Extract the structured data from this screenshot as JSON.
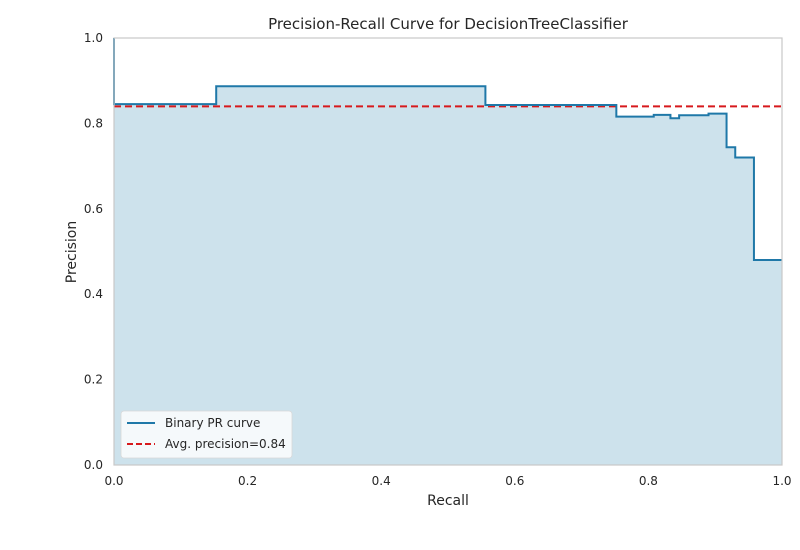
{
  "chart_data": {
    "type": "line",
    "title": "Precision-Recall Curve for DecisionTreeClassifier",
    "xlabel": "Recall",
    "ylabel": "Precision",
    "xlim": [
      0.0,
      1.0
    ],
    "ylim": [
      0.0,
      1.0
    ],
    "xticks": [
      "0.0",
      "0.2",
      "0.4",
      "0.6",
      "0.8",
      "1.0"
    ],
    "yticks": [
      "0.0",
      "0.2",
      "0.4",
      "0.6",
      "0.8",
      "1.0"
    ],
    "grid": false,
    "legend_position": "lower-left",
    "series": [
      {
        "name": "Binary PR curve",
        "style": "step-post",
        "color": "#1f78a8",
        "fill_color": "#cde2ec",
        "points": [
          [
            0.0,
            1.0
          ],
          [
            0.0,
            0.845
          ],
          [
            0.153,
            0.845
          ],
          [
            0.153,
            0.887
          ],
          [
            0.556,
            0.887
          ],
          [
            0.556,
            0.843
          ],
          [
            0.752,
            0.843
          ],
          [
            0.752,
            0.816
          ],
          [
            0.808,
            0.816
          ],
          [
            0.808,
            0.82
          ],
          [
            0.833,
            0.82
          ],
          [
            0.833,
            0.812
          ],
          [
            0.846,
            0.812
          ],
          [
            0.846,
            0.819
          ],
          [
            0.89,
            0.819
          ],
          [
            0.89,
            0.823
          ],
          [
            0.917,
            0.823
          ],
          [
            0.917,
            0.744
          ],
          [
            0.93,
            0.744
          ],
          [
            0.93,
            0.72
          ],
          [
            0.958,
            0.72
          ],
          [
            0.958,
            0.48
          ],
          [
            1.0,
            0.48
          ]
        ]
      },
      {
        "name": "Avg. precision=0.84",
        "style": "dashed",
        "color": "#d7191c",
        "y": 0.84
      }
    ]
  }
}
